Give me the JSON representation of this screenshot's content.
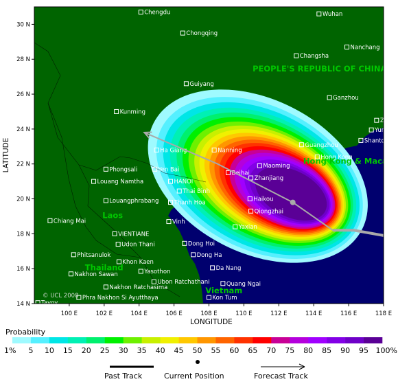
{
  "map": {
    "x_axis": {
      "title": "LONGITUDE",
      "ticks": [
        "100 E",
        "102 E",
        "104 E",
        "106 E",
        "108 E",
        "110 E",
        "112 E",
        "114 E",
        "116 E",
        "118 E"
      ],
      "lon_values": [
        100,
        102,
        104,
        106,
        108,
        110,
        112,
        114,
        116,
        118
      ]
    },
    "y_axis": {
      "title": "LATITUDE",
      "ticks": [
        "14 N",
        "16 N",
        "18 N",
        "20 N",
        "22 N",
        "24 N",
        "26 N",
        "28 N",
        "30 N"
      ],
      "lat_values": [
        14,
        16,
        18,
        20,
        22,
        24,
        26,
        28,
        30
      ]
    },
    "extent": {
      "lon": [
        98,
        118
      ],
      "lat": [
        14,
        31
      ]
    },
    "colors": {
      "land": "#006400",
      "sea": "#00006e",
      "frame": "#000000",
      "track": "#a9a9a9",
      "country_label": "#00c800"
    },
    "countries": [
      {
        "name": "PEOPLE'S REPUBLIC OF CHINA",
        "lon": 110.5,
        "lat": 27.3
      },
      {
        "name": "Laos",
        "lon": 101.9,
        "lat": 18.9
      },
      {
        "name": "Thailand",
        "lon": 100.9,
        "lat": 15.9
      },
      {
        "name": "Vietnam",
        "lon": 107.8,
        "lat": 14.6
      },
      {
        "name": "Hong Kong & Macau (China)",
        "lon": 113.4,
        "lat": 22.0
      }
    ],
    "cities": [
      {
        "name": "Chengdu",
        "lon": 104.1,
        "lat": 30.7
      },
      {
        "name": "Chongqing",
        "lon": 106.5,
        "lat": 29.5
      },
      {
        "name": "Wuhan",
        "lon": 114.3,
        "lat": 30.6
      },
      {
        "name": "Nanchang",
        "lon": 115.9,
        "lat": 28.7
      },
      {
        "name": "Changsha",
        "lon": 113.0,
        "lat": 28.2
      },
      {
        "name": "Guiyang",
        "lon": 106.7,
        "lat": 26.6
      },
      {
        "name": "Ganzhou",
        "lon": 114.9,
        "lat": 25.8
      },
      {
        "name": "Kunming",
        "lon": 102.7,
        "lat": 25.0
      },
      {
        "name": "Zhangzhou",
        "lon": 117.6,
        "lat": 24.5
      },
      {
        "name": "Yunxiao",
        "lon": 117.3,
        "lat": 23.95
      },
      {
        "name": "Guangzhou",
        "lon": 113.3,
        "lat": 23.1
      },
      {
        "name": "Shantou",
        "lon": 116.7,
        "lat": 23.35
      },
      {
        "name": "Ha Giang",
        "lon": 105.0,
        "lat": 22.8
      },
      {
        "name": "Nanning",
        "lon": 108.3,
        "lat": 22.8
      },
      {
        "name": "Hong Kong",
        "lon": 114.2,
        "lat": 22.4
      },
      {
        "name": "Beihai",
        "lon": 109.1,
        "lat": 21.5
      },
      {
        "name": "Maoming",
        "lon": 110.9,
        "lat": 21.9
      },
      {
        "name": "Zhanjiang",
        "lon": 110.4,
        "lat": 21.2
      },
      {
        "name": "Phongsali",
        "lon": 102.1,
        "lat": 21.7
      },
      {
        "name": "Yen Bai",
        "lon": 104.9,
        "lat": 21.7
      },
      {
        "name": "HANOI",
        "lon": 105.8,
        "lat": 21.0
      },
      {
        "name": "Louang Namtha",
        "lon": 101.4,
        "lat": 21.0
      },
      {
        "name": "Thai Binh",
        "lon": 106.3,
        "lat": 20.45
      },
      {
        "name": "Haikou",
        "lon": 110.35,
        "lat": 20.0
      },
      {
        "name": "Louangphrabang",
        "lon": 102.1,
        "lat": 19.9
      },
      {
        "name": "Thanh Hoa",
        "lon": 105.8,
        "lat": 19.8
      },
      {
        "name": "Qiongzhai",
        "lon": 110.4,
        "lat": 19.3
      },
      {
        "name": "Yaxian",
        "lon": 109.5,
        "lat": 18.4
      },
      {
        "name": "Chiang Mai",
        "lon": 98.9,
        "lat": 18.75
      },
      {
        "name": "Vinh",
        "lon": 105.7,
        "lat": 18.7
      },
      {
        "name": "VIENTIANE",
        "lon": 102.6,
        "lat": 18.0
      },
      {
        "name": "Udon Thani",
        "lon": 102.8,
        "lat": 17.4
      },
      {
        "name": "Dong Hoi",
        "lon": 106.6,
        "lat": 17.45
      },
      {
        "name": "Phitsanulok",
        "lon": 100.25,
        "lat": 16.8
      },
      {
        "name": "Khon Kaen",
        "lon": 102.85,
        "lat": 16.4
      },
      {
        "name": "Dong Ha",
        "lon": 107.1,
        "lat": 16.8
      },
      {
        "name": "Yasothon",
        "lon": 104.1,
        "lat": 15.85
      },
      {
        "name": "Da Nang",
        "lon": 108.2,
        "lat": 16.05
      },
      {
        "name": "Nakhon Sawan",
        "lon": 100.1,
        "lat": 15.7
      },
      {
        "name": "Ubon Ratchathani",
        "lon": 104.85,
        "lat": 15.25
      },
      {
        "name": "Quang Ngai",
        "lon": 108.8,
        "lat": 15.15
      },
      {
        "name": "Nakhon Ratchasima",
        "lon": 102.1,
        "lat": 14.95
      },
      {
        "name": "Phra Nakhon Si Ayutthaya",
        "lon": 100.55,
        "lat": 14.35
      },
      {
        "name": "Kon Tum",
        "lon": 108.0,
        "lat": 14.35
      },
      {
        "name": "Tavoy",
        "lon": 98.2,
        "lat": 14.05
      }
    ],
    "credit": "© UCL 2008",
    "past_track": [
      [
        118,
        17.9
      ],
      [
        116.3,
        18.2
      ],
      [
        115.1,
        18.2
      ]
    ],
    "current_position": [
      112.8,
      19.8
    ],
    "forecast_track": [
      [
        115.1,
        18.2
      ],
      [
        112.8,
        19.8
      ],
      [
        108.5,
        22.0
      ],
      [
        104.3,
        23.8
      ]
    ],
    "probability_zones": [
      {
        "level": 1,
        "clon": 110.8,
        "clat": 21.3,
        "rlon": 6.7,
        "rlat": 4.4
      },
      {
        "level": 5,
        "clon": 110.9,
        "clat": 21.2,
        "rlon": 6.3,
        "rlat": 4.1
      },
      {
        "level": 10,
        "clon": 111.0,
        "clat": 21.15,
        "rlon": 6.0,
        "rlat": 3.85
      },
      {
        "level": 15,
        "clon": 111.1,
        "clat": 21.1,
        "rlon": 5.7,
        "rlat": 3.6
      },
      {
        "level": 20,
        "clon": 111.2,
        "clat": 21.05,
        "rlon": 5.4,
        "rlat": 3.4
      },
      {
        "level": 25,
        "clon": 111.3,
        "clat": 21.0,
        "rlon": 5.15,
        "rlat": 3.2
      },
      {
        "level": 30,
        "clon": 111.4,
        "clat": 20.95,
        "rlon": 4.9,
        "rlat": 3.0
      },
      {
        "level": 35,
        "clon": 111.5,
        "clat": 20.9,
        "rlon": 4.65,
        "rlat": 2.85
      },
      {
        "level": 40,
        "clon": 111.6,
        "clat": 20.85,
        "rlon": 4.45,
        "rlat": 2.7
      },
      {
        "level": 45,
        "clon": 111.7,
        "clat": 20.8,
        "rlon": 4.25,
        "rlat": 2.55
      },
      {
        "level": 50,
        "clon": 111.8,
        "clat": 20.75,
        "rlon": 4.05,
        "rlat": 2.42
      },
      {
        "level": 55,
        "clon": 111.9,
        "clat": 20.7,
        "rlon": 3.85,
        "rlat": 2.3
      },
      {
        "level": 60,
        "clon": 112.0,
        "clat": 20.65,
        "rlon": 3.65,
        "rlat": 2.18
      },
      {
        "level": 65,
        "clon": 112.1,
        "clat": 20.6,
        "rlon": 3.45,
        "rlat": 2.06
      },
      {
        "level": 70,
        "clon": 112.2,
        "clat": 20.55,
        "rlon": 3.25,
        "rlat": 1.94
      },
      {
        "level": 75,
        "clon": 112.3,
        "clat": 20.5,
        "rlon": 3.05,
        "rlat": 1.82
      },
      {
        "level": 80,
        "clon": 112.4,
        "clat": 20.45,
        "rlon": 2.85,
        "rlat": 1.7
      },
      {
        "level": 85,
        "clon": 112.5,
        "clat": 20.4,
        "rlon": 2.65,
        "rlat": 1.58
      },
      {
        "level": 90,
        "clon": 112.6,
        "clat": 20.35,
        "rlon": 2.45,
        "rlat": 1.46
      },
      {
        "level": 95,
        "clon": 112.7,
        "clat": 20.3,
        "rlon": 2.2,
        "rlat": 1.32
      }
    ]
  },
  "legend": {
    "title": "Probability",
    "labels": [
      "1%",
      "5",
      "10",
      "15",
      "20",
      "25",
      "30",
      "35",
      "40",
      "45",
      "50",
      "55",
      "60",
      "65",
      "70",
      "75",
      "80",
      "85",
      "90",
      "95",
      "100%"
    ],
    "colors": [
      "#9ffaff",
      "#55f0ff",
      "#00e6e6",
      "#00f0b4",
      "#00f06e",
      "#00f000",
      "#6ef000",
      "#c8f000",
      "#f0f000",
      "#ffc800",
      "#ff9600",
      "#ff6400",
      "#ff3200",
      "#ff0000",
      "#c80096",
      "#b400dc",
      "#a000ff",
      "#8200e6",
      "#6e00c8",
      "#5a0096"
    ]
  },
  "key": {
    "past_track": "Past Track",
    "current_position": "Current Position",
    "forecast_track": "Forecast Track"
  }
}
